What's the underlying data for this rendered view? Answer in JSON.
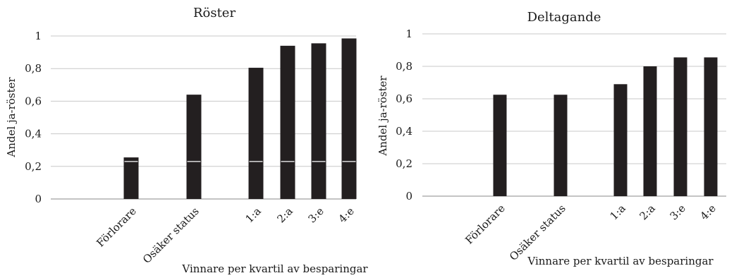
{
  "chart_data": [
    {
      "type": "bar",
      "title": "Röster",
      "ylabel": "Andel ja-röster",
      "xlabel": "Vinnare per kvartil av besparingar",
      "categories": [
        "Förlorare",
        "Osäker status",
        "1:a",
        "2:a",
        "3:e",
        "4:e"
      ],
      "values": [
        0.255,
        0.64,
        0.805,
        0.94,
        0.955,
        0.985
      ],
      "ylim": [
        0,
        1
      ],
      "yticks": [
        0,
        0.2,
        0.4,
        0.6,
        0.8,
        1
      ],
      "ytick_labels": [
        "0",
        "0,2",
        "0,4",
        "0,6",
        "0,8",
        "1"
      ],
      "grid": true,
      "reference_line": 0.23,
      "bar_color": "#231f20"
    },
    {
      "type": "bar",
      "title": "Deltagande",
      "ylabel": "Andel ja-röster",
      "xlabel": "Vinnare per kvartil av besparingar",
      "categories": [
        "Förlorare",
        "Osäker status",
        "1:a",
        "2:a",
        "3:e",
        "4:e"
      ],
      "values": [
        0.625,
        0.625,
        0.69,
        0.8,
        0.855,
        0.855
      ],
      "ylim": [
        0,
        1
      ],
      "yticks": [
        0,
        0.2,
        0.4,
        0.6,
        0.8,
        1
      ],
      "ytick_labels": [
        "0",
        "0,2",
        "0,4",
        "0,6",
        "0,8",
        "1"
      ],
      "grid": true,
      "bar_color": "#231f20"
    }
  ]
}
